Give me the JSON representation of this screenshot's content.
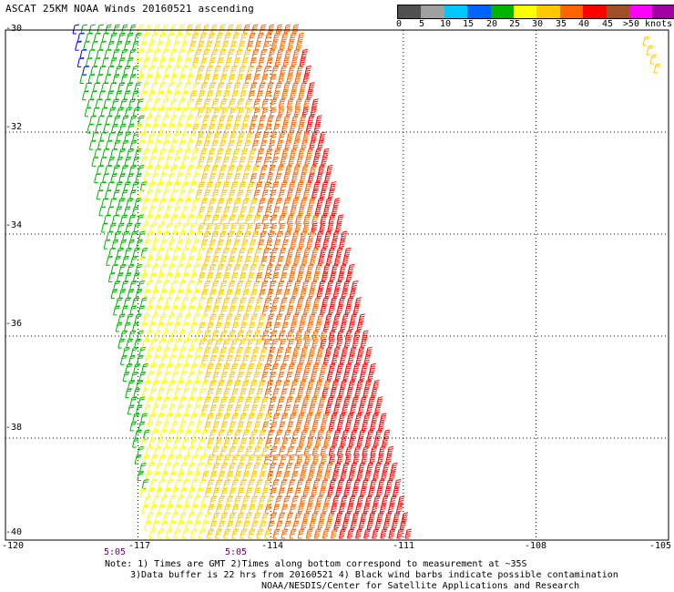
{
  "title": "ASCAT 25KM NOAA Winds 20160521 ascending",
  "colorbar": {
    "unit_label": ">50 knots",
    "tick_labels": [
      "0",
      "5",
      "10",
      "15",
      "20",
      "25",
      "30",
      "35",
      "40",
      "45",
      ">50 knots"
    ],
    "colors": [
      "#505050",
      "#a0a0a0",
      "#00c8ff",
      "#0064ff",
      "#00b400",
      "#ffff00",
      "#ffc800",
      "#ff6400",
      "#ff0000",
      "#a05028",
      "#ff00ff",
      "#a000a0",
      "#5a00a0"
    ]
  },
  "map": {
    "lat_labels": [
      "-30",
      "-32",
      "-34",
      "-36",
      "-38",
      "-40"
    ],
    "lon_labels": [
      "-120",
      "-117",
      "-114",
      "-111",
      "-108",
      "-105"
    ],
    "lat_range": [
      -40,
      -30
    ],
    "lon_range": [
      -120,
      -105
    ],
    "gridlines": "dotted",
    "time_labels": [
      "5:05",
      "5:05"
    ],
    "wind_speed_bands_knots": [
      {
        "range": [
          10,
          15
        ],
        "color": "#0000ff"
      },
      {
        "range": [
          15,
          20
        ],
        "color": "#00b400"
      },
      {
        "range": [
          20,
          25
        ],
        "color": "#ffff00"
      },
      {
        "range": [
          25,
          30
        ],
        "color": "#ffc800"
      },
      {
        "range": [
          30,
          35
        ],
        "color": "#ff6400"
      },
      {
        "range": [
          35,
          40
        ],
        "color": "#ff0000"
      }
    ]
  },
  "notes": {
    "line1": "Note: 1) Times are GMT 2)Times along bottom correspond to measurement at ~35S",
    "line2": "3)Data buffer is 22 hrs from 20160521 4) Black wind barbs indicate possible contamination",
    "line3": "NOAA/NESDIS/Center for Satellite Applications and Research"
  }
}
